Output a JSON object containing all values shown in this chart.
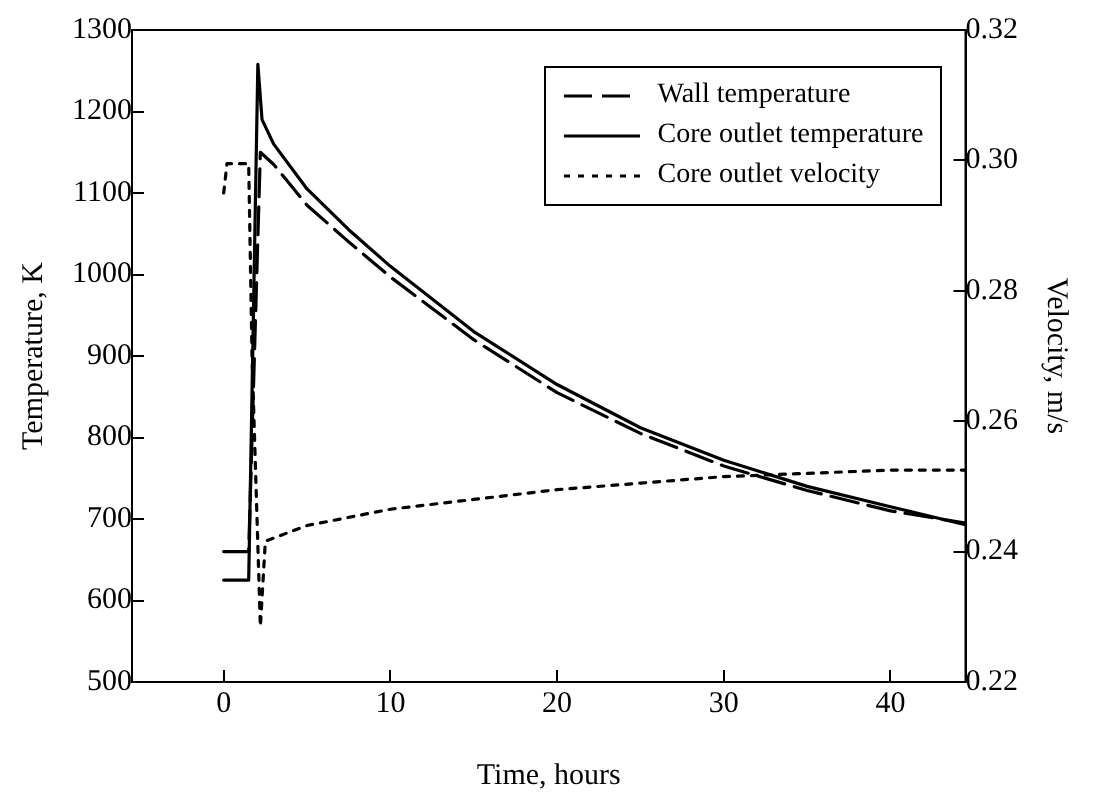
{
  "chart_data": {
    "type": "line",
    "xlabel": "Time, hours",
    "ylabel": "Temperature, K",
    "y2label": "Velocity, m/s",
    "xlim": [
      -5.5,
      44.5
    ],
    "xticks": [
      0,
      10,
      20,
      30,
      40
    ],
    "ylim": [
      500,
      1300
    ],
    "yticks": [
      500,
      600,
      700,
      800,
      900,
      1000,
      1100,
      1200,
      1300
    ],
    "y2lim": [
      0.22,
      0.32
    ],
    "y2ticks": [
      0.22,
      0.24,
      0.26,
      0.28,
      {
        "value": 0.3,
        "label": "0.30"
      },
      0.32
    ],
    "grid": false,
    "legend": "top right",
    "marker": "none",
    "series": [
      {
        "name": "Wall temperature",
        "color": "#000000",
        "line_style": "dashed",
        "x": [
          0,
          1.4,
          1.5,
          2.2,
          3,
          5,
          7.5,
          10,
          15,
          20,
          25,
          30,
          35,
          40,
          44.5
        ],
        "values": [
          660,
          660,
          660,
          1150,
          1135,
          1085,
          1040,
          997,
          920,
          855,
          805,
          765,
          735,
          710,
          695
        ]
      },
      {
        "name": "Core outlet temperature",
        "color": "#000000",
        "line_style": "solid",
        "x": [
          0,
          1.4,
          1.5,
          2.05,
          2.3,
          3,
          5,
          7.5,
          10,
          15,
          20,
          25,
          30,
          35,
          40,
          44.5
        ],
        "values": [
          625,
          625,
          625,
          1258,
          1190,
          1160,
          1105,
          1055,
          1010,
          930,
          865,
          812,
          772,
          740,
          715,
          693
        ]
      },
      {
        "name": "Core outlet velocity",
        "color": "#000000",
        "line_style": "dotted",
        "axis": "y2",
        "x": [
          0,
          0.2,
          1.5,
          1.7,
          2.2,
          2.5,
          5,
          10,
          15,
          20,
          25,
          30,
          35,
          40,
          44.5
        ],
        "values": [
          0.295,
          0.2995,
          0.2995,
          0.27,
          0.2285,
          0.2416,
          0.244,
          0.2465,
          0.248,
          0.2495,
          0.2505,
          0.2515,
          0.252,
          0.2525,
          0.2525
        ]
      }
    ]
  }
}
